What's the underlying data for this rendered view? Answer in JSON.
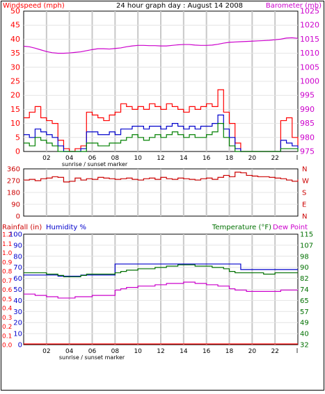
{
  "title": "24 hour graph day : August 14 2008",
  "colors": {
    "wind": "#ff0000",
    "gust": "#ff0000",
    "avg_wind": "#0000cc",
    "low": "#008000",
    "barometer": "#cc00cc",
    "direction": "#cc0000",
    "humidity": "#0000cc",
    "temperature": "#007000",
    "dewpoint": "#cc00cc",
    "rainfall": "#ff0000",
    "grid": "#c8c8c8",
    "frame": "#000000"
  },
  "x_axis": {
    "tick_labels": [
      "02",
      "04",
      "06",
      "08",
      "10",
      "12",
      "14",
      "16",
      "18",
      "20",
      "22"
    ],
    "extra_label": "sunrise / sunset marker",
    "end_label": "l",
    "range": [
      0,
      24
    ]
  },
  "chart_data": [
    {
      "type": "line",
      "panel": "wind-barometer",
      "left_axis_label": "Windspeed (mph)",
      "right_axis_label": "Barometer (mb)",
      "left_ticks": [
        "50",
        "45",
        "40",
        "35",
        "30",
        "25",
        "20",
        "15",
        "10",
        "5",
        "0"
      ],
      "right_ticks": [
        "1025",
        "1020",
        "1015",
        "1010",
        "1005",
        "1000",
        "995",
        "990",
        "985",
        "980",
        "975"
      ],
      "ylim_left": [
        0,
        50
      ],
      "ylim_right": [
        975,
        1025
      ],
      "x": [
        0,
        0.5,
        1,
        1.5,
        2,
        2.5,
        3,
        3.5,
        4,
        4.5,
        5,
        5.5,
        6,
        6.5,
        7,
        7.5,
        8,
        8.5,
        9,
        9.5,
        10,
        10.5,
        11,
        11.5,
        12,
        12.5,
        13,
        13.5,
        14,
        14.5,
        15,
        15.5,
        16,
        16.5,
        17,
        17.5,
        18,
        18.5,
        19,
        19.5,
        20,
        20.5,
        21,
        21.5,
        22,
        22.5,
        23,
        23.5,
        24
      ],
      "series": [
        {
          "key": "gust",
          "values": [
            12,
            14,
            16,
            12,
            11,
            10,
            4,
            1,
            0,
            1,
            2,
            14,
            13,
            12,
            11,
            13,
            14,
            17,
            16,
            15,
            16,
            15,
            17,
            16,
            15,
            17,
            16,
            15,
            14,
            16,
            15,
            16,
            17,
            16,
            22,
            14,
            10,
            3,
            0,
            0,
            0,
            0,
            0,
            0,
            0,
            11,
            12,
            5,
            2
          ]
        },
        {
          "key": "avg_wind",
          "values": [
            6,
            5,
            8,
            7,
            6,
            5,
            2,
            0,
            0,
            0,
            1,
            7,
            7,
            6,
            6,
            7,
            6,
            8,
            8,
            9,
            9,
            8,
            9,
            9,
            8,
            9,
            10,
            9,
            8,
            9,
            8,
            9,
            9,
            10,
            13,
            8,
            5,
            1,
            0,
            0,
            0,
            0,
            0,
            0,
            0,
            4,
            3,
            2,
            1
          ]
        },
        {
          "key": "low",
          "values": [
            3,
            2,
            5,
            4,
            3,
            2,
            0,
            0,
            0,
            0,
            0,
            3,
            3,
            2,
            2,
            3,
            3,
            4,
            5,
            6,
            5,
            4,
            5,
            6,
            5,
            6,
            7,
            6,
            5,
            6,
            5,
            5,
            6,
            7,
            10,
            5,
            2,
            0,
            0,
            0,
            0,
            0,
            0,
            0,
            0,
            1,
            1,
            1,
            0
          ]
        },
        {
          "key": "barometer",
          "values": [
            1012.5,
            1012.3,
            1011.8,
            1011.2,
            1010.6,
            1010.2,
            1010.0,
            1010.0,
            1010.1,
            1010.3,
            1010.5,
            1010.9,
            1011.3,
            1011.6,
            1011.6,
            1011.5,
            1011.7,
            1011.9,
            1012.3,
            1012.6,
            1012.8,
            1012.8,
            1012.7,
            1012.7,
            1012.6,
            1012.6,
            1012.8,
            1013.0,
            1013.1,
            1013.1,
            1012.9,
            1012.8,
            1012.8,
            1012.9,
            1013.2,
            1013.6,
            1013.9,
            1014.0,
            1014.1,
            1014.2,
            1014.3,
            1014.4,
            1014.5,
            1014.6,
            1014.8,
            1015.0,
            1015.4,
            1015.5,
            1015.3
          ]
        }
      ]
    },
    {
      "type": "line",
      "panel": "wind-direction",
      "left_ticks": [
        "360",
        "270",
        "180",
        "90",
        "0"
      ],
      "right_ticks": [
        "N",
        "W",
        "S",
        "E",
        "N"
      ],
      "ylim": [
        0,
        360
      ],
      "x": [
        0,
        0.5,
        1,
        1.5,
        2,
        2.5,
        3,
        3.5,
        4,
        4.5,
        5,
        5.5,
        6,
        6.5,
        7,
        7.5,
        8,
        8.5,
        9,
        9.5,
        10,
        10.5,
        11,
        11.5,
        12,
        12.5,
        13,
        13.5,
        14,
        14.5,
        15,
        15.5,
        16,
        16.5,
        17,
        17.5,
        18,
        18.5,
        19,
        19.5,
        20,
        20.5,
        21,
        21.5,
        22,
        22.5,
        23,
        23.5,
        24
      ],
      "series": [
        {
          "key": "direction",
          "values": [
            275,
            280,
            270,
            285,
            290,
            300,
            295,
            260,
            265,
            290,
            275,
            285,
            280,
            295,
            290,
            285,
            280,
            285,
            290,
            280,
            275,
            285,
            290,
            280,
            295,
            285,
            280,
            290,
            285,
            280,
            275,
            285,
            290,
            280,
            295,
            310,
            300,
            335,
            330,
            310,
            305,
            300,
            300,
            295,
            290,
            285,
            275,
            265,
            280
          ]
        }
      ]
    },
    {
      "type": "line",
      "panel": "humidity-temperature",
      "rain_axis_label": "Rainfall (in)",
      "humidity_axis_label": "Humidity %",
      "temperature_axis_label": "Temperature (°F)",
      "dewpoint_axis_label": "Dew Point",
      "rain_ticks": [
        "1.2",
        "1.1",
        "1.0",
        "0.9",
        "0.8",
        "0.7",
        "0.6",
        "0.5",
        "0.4",
        "0.3",
        "0.2",
        "0.1",
        "0.0"
      ],
      "humidity_ticks": [
        "100",
        "90",
        "80",
        "70",
        "60",
        "50",
        "40",
        "30",
        "20",
        "10",
        "0"
      ],
      "temperature_ticks": [
        "115",
        "107",
        "98",
        "90",
        "82",
        "74",
        "65",
        "57",
        "49",
        "40",
        "32"
      ],
      "ylim_humidity": [
        0,
        100
      ],
      "ylim_temperature": [
        32,
        115
      ],
      "x": [
        0,
        0.5,
        1,
        1.5,
        2,
        2.5,
        3,
        3.5,
        4,
        4.5,
        5,
        5.5,
        6,
        6.5,
        7,
        7.5,
        8,
        8.5,
        9,
        9.5,
        10,
        10.5,
        11,
        11.5,
        12,
        12.5,
        13,
        13.5,
        14,
        14.5,
        15,
        15.5,
        16,
        16.5,
        17,
        17.5,
        18,
        18.5,
        19,
        19.5,
        20,
        20.5,
        21,
        21.5,
        22,
        22.5,
        23,
        23.5,
        24
      ],
      "series": [
        {
          "key": "humidity",
          "values": [
            63,
            63,
            63,
            63,
            63,
            63,
            62,
            62,
            62,
            62,
            63,
            63,
            63,
            63,
            63,
            63,
            73,
            73,
            73,
            73,
            73,
            73,
            73,
            73,
            73,
            73,
            73,
            73,
            73,
            73,
            73,
            73,
            73,
            73,
            73,
            73,
            73,
            73,
            68,
            68,
            68,
            68,
            68,
            68,
            68,
            68,
            68,
            68,
            68
          ]
        },
        {
          "key": "temperature",
          "values": [
            86,
            86,
            86,
            86,
            85,
            85,
            84,
            83,
            83,
            83,
            84,
            85,
            85,
            85,
            85,
            85,
            86,
            87,
            88,
            88,
            89,
            89,
            89,
            90,
            90,
            91,
            91,
            92,
            92,
            92,
            91,
            91,
            91,
            90,
            90,
            89,
            87,
            86,
            86,
            86,
            86,
            86,
            85,
            85,
            86,
            86,
            86,
            86,
            86
          ]
        },
        {
          "key": "dewpoint",
          "values": [
            70,
            70,
            69,
            69,
            68,
            68,
            67,
            67,
            67,
            68,
            68,
            68,
            69,
            69,
            69,
            69,
            73,
            74,
            75,
            75,
            76,
            76,
            76,
            77,
            77,
            78,
            78,
            78,
            79,
            79,
            78,
            78,
            77,
            77,
            76,
            76,
            74,
            73,
            73,
            72,
            72,
            72,
            72,
            72,
            72,
            73,
            73,
            73,
            73
          ]
        },
        {
          "key": "rainfall",
          "values": [
            0,
            0,
            0,
            0,
            0,
            0,
            0,
            0,
            0,
            0,
            0,
            0,
            0,
            0,
            0,
            0,
            0,
            0,
            0,
            0,
            0,
            0,
            0,
            0,
            0,
            0,
            0,
            0,
            0,
            0,
            0,
            0,
            0,
            0,
            0,
            0,
            0,
            0,
            0,
            0,
            0,
            0,
            0,
            0,
            0,
            0,
            0,
            0,
            0
          ]
        }
      ]
    }
  ]
}
